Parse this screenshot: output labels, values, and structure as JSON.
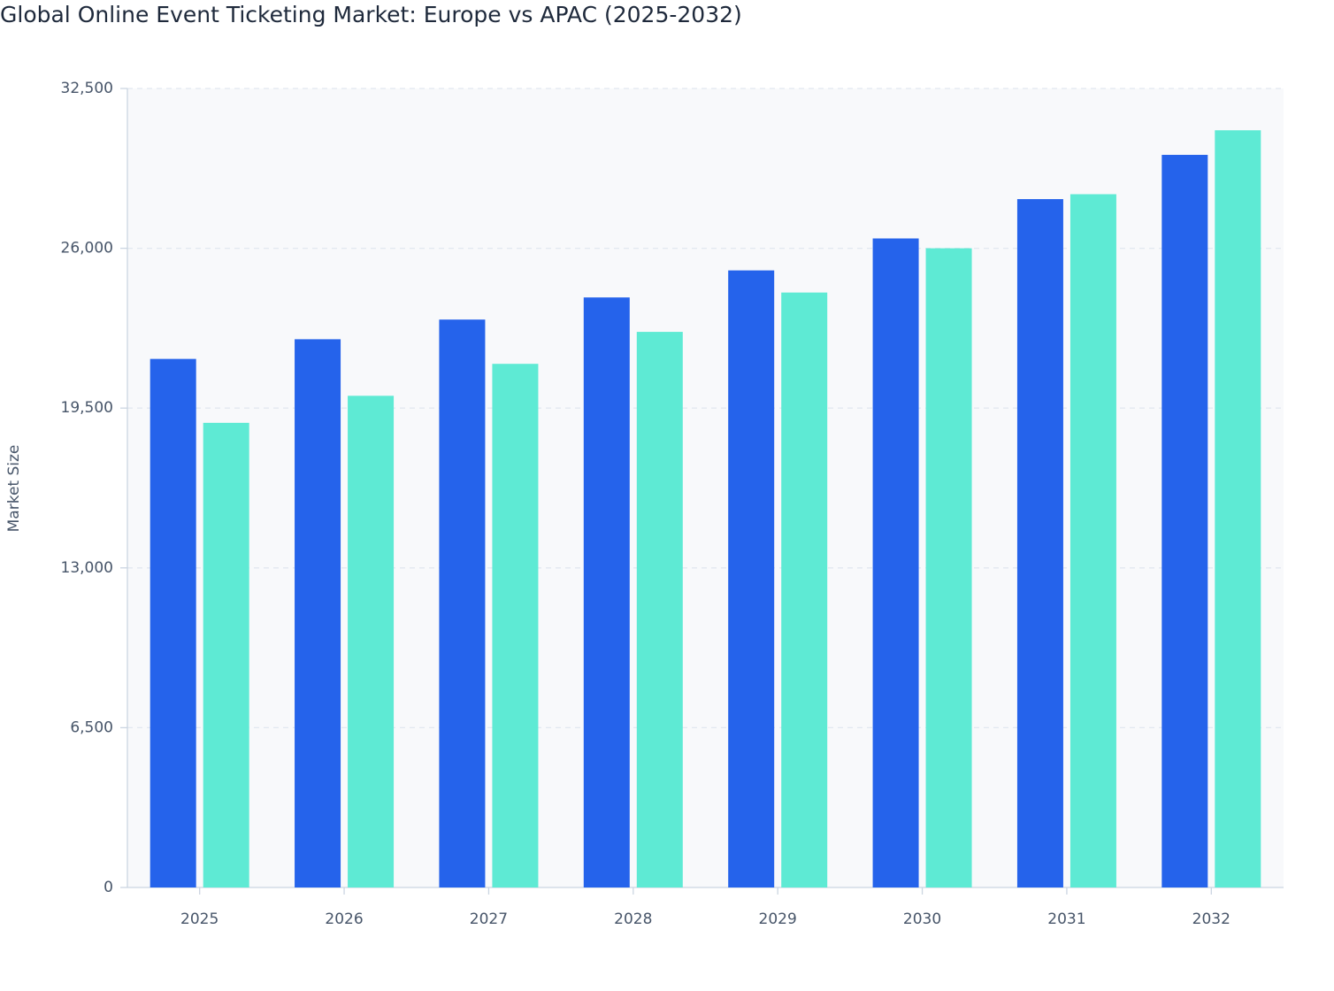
{
  "chart_data": {
    "type": "bar",
    "title": "Global Online Event Ticketing Market: Europe vs APAC (2025-2032)",
    "y_label": "Market Size",
    "categories": [
      "2025",
      "2026",
      "2027",
      "2028",
      "2029",
      "2030",
      "2031",
      "2032"
    ],
    "series": [
      {
        "name": "Europe",
        "color": "#2563eb",
        "values": [
          21500,
          22300,
          23100,
          24000,
          25100,
          26400,
          28000,
          29800
        ]
      },
      {
        "name": "APAC",
        "color": "#5eead4",
        "values": [
          18900,
          20000,
          21300,
          22600,
          24200,
          26000,
          28200,
          30800
        ]
      }
    ],
    "ylim": [
      0,
      32500
    ],
    "yticks": [
      0,
      {
        "value": 6500,
        "label": "6,500"
      },
      {
        "value": 13000,
        "label": "13,000"
      },
      {
        "value": 19500,
        "label": "19,500"
      },
      {
        "value": 26000,
        "label": "26,000"
      },
      {
        "value": 32500,
        "label": "32,500"
      }
    ],
    "grid": true
  }
}
